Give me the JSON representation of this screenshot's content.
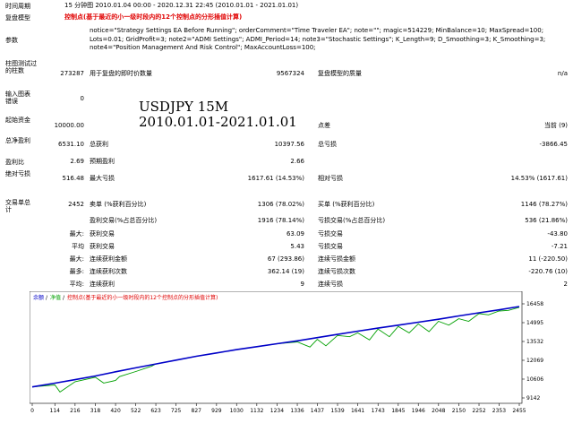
{
  "report": {
    "period": {
      "label": "时间周期",
      "value": "15 分钟图 2010.01.04 00:00 - 2020.12.31 22:45 (2010.01.01 - 2021.01.01)"
    },
    "model": {
      "label": "复盘模型",
      "value": "控制点(基于最近的小一级时段内的12个控制点的分形插值计算)"
    },
    "params": {
      "label": "参数",
      "value": "notice=\"Strategy Settings EA Before Running\"; orderComment=\"Time Traveler EA\"; note=\"\"; magic=514229; MinBalance=10; MaxSpread=100; Lots=0.01; GridProfit=3; note2=\"ADMI Settings\"; ADMI_Period=14; note3=\"Stochastic Settings\"; K_Length=9; D_Smoothing=3; K_Smoothing=3; note4=\"Position Management And Risk Control\"; MaxAccountLoss=100;"
    },
    "bars_tested": {
      "label": "柱图测试过的柱数",
      "value": "273287"
    },
    "ticks_modelled": {
      "label": "用于复盘的即时价数量",
      "value": "9567324"
    },
    "modelling_quality": {
      "label": "复盘模型的质量",
      "value": "n/a"
    },
    "mismatched_errors": {
      "label": "输入图表错误",
      "value": "0"
    },
    "initial_deposit": {
      "label": "起始资金",
      "value": "10000.00"
    },
    "spread": {
      "label": "点差",
      "value": "当前 (9)"
    },
    "net_profit": {
      "label": "总净盈利",
      "value": "6531.10"
    },
    "gross_profit": {
      "label": "总获利",
      "value": "10397.56"
    },
    "gross_loss": {
      "label": "总亏损",
      "value": "-3866.45"
    },
    "profit_factor": {
      "label": "盈利比",
      "value": "2.69"
    },
    "expected_payoff": {
      "label": "预期盈利",
      "value": "2.66"
    },
    "absolute_drawdown": {
      "label": "绝对亏损",
      "value": "516.48"
    },
    "maximal_drawdown": {
      "label": "最大亏损",
      "value": "1617.61 (14.53%)"
    },
    "relative_drawdown": {
      "label": "相对亏损",
      "value": "14.53% (1617.61)"
    },
    "total_trades": {
      "label": "交易单总计",
      "value": "2452"
    },
    "short_positions": {
      "label": "卖单 (%获利百分比)",
      "value": "1306 (78.02%)"
    },
    "long_positions": {
      "label": "买单 (%获利百分比)",
      "value": "1146 (78.27%)"
    },
    "profit_trades": {
      "label": "盈利交易(%占总百分比)",
      "value": "1916 (78.14%)"
    },
    "loss_trades": {
      "label": "亏损交易(%占总百分比)",
      "value": "536 (21.86%)"
    },
    "largest": {
      "label": "最大:",
      "profit_label": "获利交易",
      "profit": "63.09",
      "loss_label": "亏损交易",
      "loss": "-43.80"
    },
    "average": {
      "label": "平均",
      "profit_label": "获利交易",
      "profit": "5.43",
      "loss_label": "亏损交易",
      "loss": "-7.21"
    },
    "max_consec": {
      "label": "最大:",
      "wins_label": "连续获利金额",
      "wins": "67 (293.86)",
      "losses_label": "连续亏损金额",
      "losses": "11 (-220.50)"
    },
    "maximal_consec": {
      "label": "最多:",
      "profit_label": "连续获利次数",
      "profit": "362.14 (19)",
      "loss_label": "连续亏损次数",
      "loss": "-220.76 (10)"
    },
    "average_consec": {
      "label": "平均:",
      "wins_label": "连续获利",
      "wins": "9",
      "losses_label": "连续亏损",
      "losses": "2"
    }
  },
  "overlay": {
    "line1": "USDJPY 15M",
    "line2": "2010.01.01-2021.01.01"
  },
  "chart_legend": {
    "balance": "余额",
    "equity": "净值",
    "model": "控制点(基于最近的小一级时段内的12个控制点的分形插值计算)"
  },
  "colors": {
    "balance": "#0000c8",
    "equity": "#00a000",
    "legend_model": "#e00000"
  },
  "chart_data": {
    "type": "line",
    "title": "",
    "x_ticks": [
      0,
      114,
      216,
      318,
      420,
      522,
      623,
      725,
      827,
      929,
      1030,
      1132,
      1234,
      1336,
      1437,
      1539,
      1641,
      1743,
      1845,
      1946,
      2048,
      2150,
      2252,
      2353,
      2455
    ],
    "y_ticks": [
      9142,
      10606,
      12069,
      13532,
      14995,
      16458
    ],
    "xlim": [
      0,
      2455
    ],
    "ylim": [
      9142,
      16458
    ],
    "series": [
      {
        "name": "余额",
        "color": "#0000c8",
        "x": [
          0,
          114,
          216,
          318,
          420,
          522,
          623,
          725,
          827,
          929,
          1030,
          1132,
          1234,
          1336,
          1437,
          1539,
          1641,
          1743,
          1845,
          1946,
          2048,
          2150,
          2252,
          2353,
          2455
        ],
        "values": [
          10000,
          10290,
          10560,
          10850,
          11180,
          11480,
          11780,
          12080,
          12380,
          12640,
          12900,
          13130,
          13360,
          13580,
          13830,
          14080,
          14330,
          14570,
          14800,
          15030,
          15260,
          15520,
          15760,
          15990,
          16250
        ]
      },
      {
        "name": "净值",
        "color": "#00a000",
        "x": [
          0,
          114,
          140,
          216,
          318,
          360,
          420,
          440,
          522,
          600,
          623,
          725,
          827,
          929,
          1030,
          1132,
          1234,
          1336,
          1400,
          1437,
          1480,
          1539,
          1600,
          1641,
          1700,
          1743,
          1800,
          1845,
          1900,
          1946,
          2000,
          2048,
          2100,
          2150,
          2200,
          2252,
          2300,
          2353,
          2400,
          2455
        ],
        "values": [
          10000,
          10150,
          9600,
          10400,
          10750,
          10300,
          10500,
          10800,
          11200,
          11600,
          11780,
          12080,
          12380,
          12640,
          12900,
          13130,
          13360,
          13500,
          13100,
          13700,
          13200,
          14000,
          13900,
          14200,
          13650,
          14500,
          13900,
          14700,
          14200,
          14900,
          14300,
          15100,
          14800,
          15300,
          15100,
          15700,
          15600,
          15900,
          15950,
          16180
        ]
      }
    ]
  }
}
